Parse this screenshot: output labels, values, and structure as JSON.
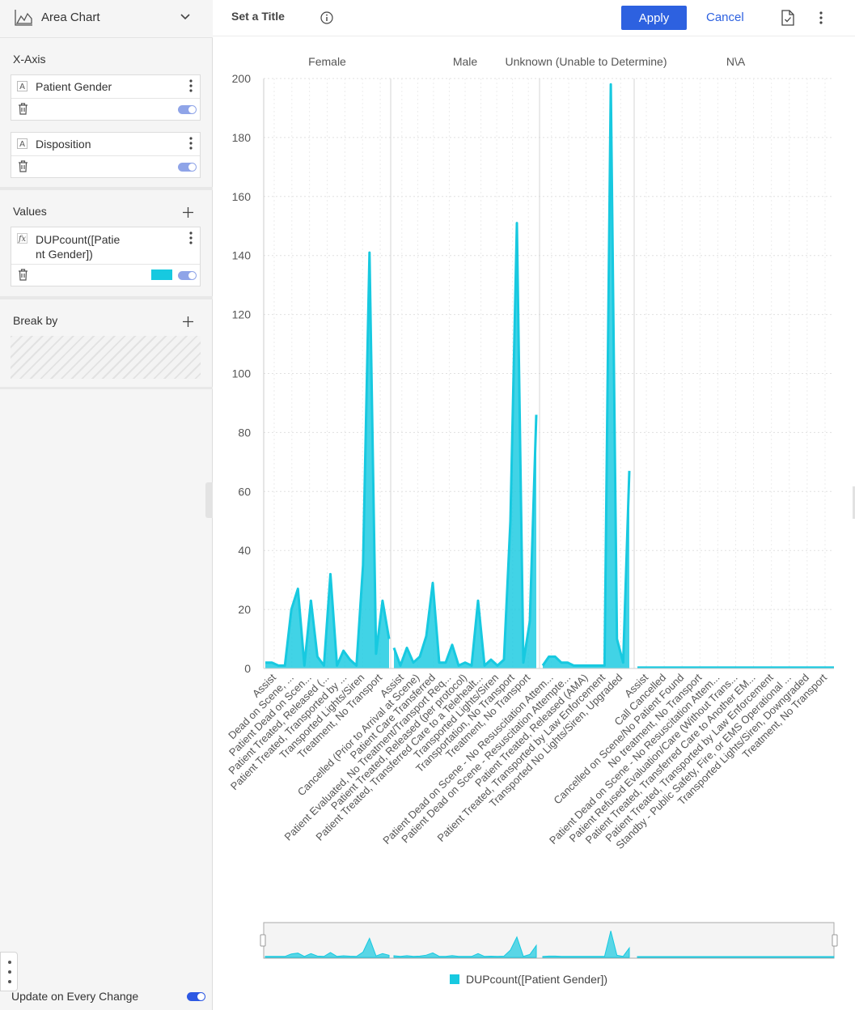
{
  "sidebar": {
    "chart_type": "Area Chart",
    "x_axis": {
      "title": "X-Axis",
      "fields": [
        {
          "type": "A",
          "name": "Patient Gender"
        },
        {
          "type": "A",
          "name": "Disposition"
        }
      ]
    },
    "values": {
      "title": "Values",
      "fields": [
        {
          "type": "fx",
          "name": "DUPcount([Patie\nnt Gender])",
          "color": "#17c9e0"
        }
      ]
    },
    "break_by": {
      "title": "Break by"
    },
    "update_label": "Update on Every Change"
  },
  "header": {
    "title": "Set a Title",
    "apply_label": "Apply",
    "cancel_label": "Cancel"
  },
  "chart_data": {
    "type": "area",
    "ylim": [
      0,
      200
    ],
    "y_ticks": [
      0,
      20,
      40,
      60,
      80,
      100,
      120,
      140,
      160,
      180,
      200
    ],
    "grid": true,
    "legend_position": "bottom",
    "color": "#17c9e0",
    "series": [
      {
        "name": "DUPcount([Patient Gender])"
      }
    ],
    "groups": [
      {
        "name": "Female",
        "categories": [
          "Assist",
          "Dead on Scene, ...",
          "Patient Dead on Scen...",
          "Patient Treated, Released (...",
          "Patient Treated, Transported by ...",
          "Transported Lights/Siren",
          "Treatment, No Transport"
        ],
        "values": [
          2,
          2,
          1,
          1,
          20,
          27,
          1,
          23,
          4,
          1,
          32,
          1,
          6,
          3,
          1,
          35,
          141,
          5,
          23,
          10
        ]
      },
      {
        "name": "Male",
        "categories": [
          "Assist",
          "Cancelled (Prior to Arrival at Scene)",
          "Patient Care Transferred",
          "Patient Evaluated, No Treatment/Transport Req...",
          "Patient Treated, Released (per protocol)",
          "Patient Treated, Transferred Care to a Telehealt...",
          "Transported Lights/Siren",
          "Transportation, No Transport",
          "Treatment, No Transport"
        ],
        "values": [
          7,
          1,
          7,
          2,
          4,
          11,
          29,
          2,
          2,
          8,
          1,
          2,
          1,
          23,
          1,
          3,
          1,
          3,
          50,
          151,
          2,
          16,
          86
        ]
      },
      {
        "name": "Unknown (Unable to Determine)",
        "categories": [
          "Patient Dead on Scene - No Resuscitation Attem...",
          "Patient Dead on Scene - Resuscitation Attempte...",
          "Patient Treated, Released (AMA)",
          "Patient Treated, Transported by Law Enforcement",
          "Transported No Lights/Siren, Upgraded"
        ],
        "values": [
          1,
          4,
          4,
          2,
          2,
          1,
          1,
          1,
          1,
          1,
          1,
          198,
          10,
          2,
          67
        ]
      },
      {
        "name": "N\\A",
        "categories": [
          "Assist",
          "Call Cancelled",
          "Cancelled on Scene/No Patient Found",
          "No treatment, No Transport",
          "Patient Dead on Scene - No Resuscitation Attem...",
          "Patient Refused Evaluation/Care (Without Trans...",
          "Patient Treated, Transferred Care to Another EM...",
          "Patient Treated, Transported by Law Enforcement",
          "Standby - Public Safety, Fire, or EMS Operational ...",
          "Transported Lights/Siren, Downgraded",
          "Treatment, No Transport"
        ],
        "values": [
          0.3,
          0.3,
          0.3,
          0.3,
          0.3,
          0.3,
          0.3,
          0.3,
          0.3,
          0.3,
          0.3
        ]
      }
    ],
    "axis_labels": [
      "Assist",
      "Dead on Scene, ...",
      "Patient Dead on Scen...",
      "Patient Treated, Released (...",
      "Patient Treated, Transported by ...",
      "Transported Lights/Siren",
      "Treatment, No Transport",
      "Assist",
      "Cancelled (Prior to Arrival at Scene)",
      "Patient Care Transferred",
      "Patient Evaluated, No Treatment/Transport Req...",
      "Patient Treated, Released (per protocol)",
      "Patient Treated, Transferred Care to a Telehealt...",
      "Transported Lights/Siren",
      "Transportation, No Transport",
      "Treatment, No Transport",
      "Patient Dead on Scene - No Resuscitation Attem...",
      "Patient Dead on Scene - Resuscitation Attempte...",
      "Patient Treated, Released (AMA)",
      "Patient Treated, Transported by Law Enforcement",
      "Transported No Lights/Siren, Upgraded",
      "Assist",
      "Call Cancelled",
      "Cancelled on Scene/No Patient Found",
      "No treatment, No Transport",
      "Patient Dead on Scene - No Resuscitation Attem...",
      "Patient Refused Evaluation/Care (Without Trans...",
      "Patient Treated, Transferred Care to Another EM...",
      "Patient Treated, Transported by Law Enforcement",
      "Standby - Public Safety, Fire, or EMS Operational ...",
      "Transported Lights/Siren, Downgraded",
      "Treatment, No Transport"
    ]
  }
}
